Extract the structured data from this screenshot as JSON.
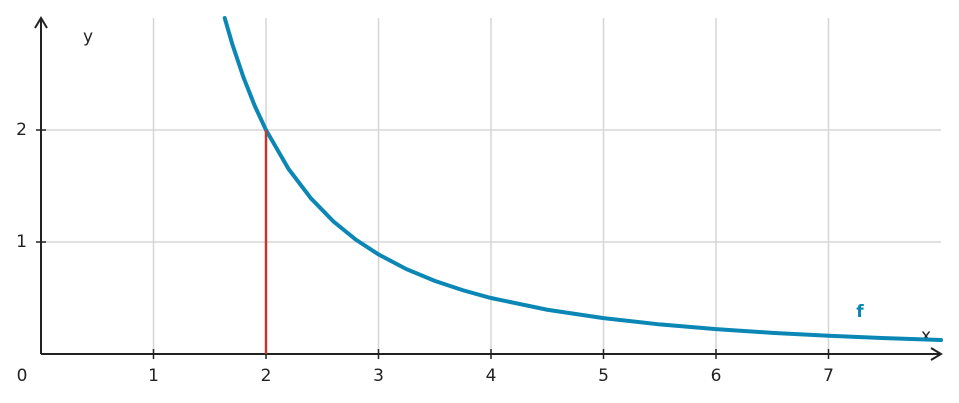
{
  "chart_data": {
    "type": "line",
    "x_label": "x",
    "y_label": "y",
    "origin_label": "0",
    "xlim": [
      0,
      8
    ],
    "ylim": [
      0,
      3
    ],
    "xticks": [
      1,
      2,
      3,
      4,
      5,
      6,
      7
    ],
    "yticks": [
      1,
      2
    ],
    "grid": true,
    "series": [
      {
        "name": "f",
        "color": "#0a87b5",
        "x": [
          1.633,
          1.7,
          1.8,
          1.9,
          2,
          2.2,
          2.4,
          2.6,
          2.8,
          3,
          3.25,
          3.5,
          3.75,
          4,
          4.5,
          5,
          5.5,
          6,
          6.5,
          7,
          7.5,
          8
        ],
        "values": [
          3.0,
          2.768,
          2.469,
          2.216,
          2,
          1.653,
          1.389,
          1.183,
          1.02,
          0.889,
          0.757,
          0.653,
          0.569,
          0.5,
          0.395,
          0.32,
          0.264,
          0.222,
          0.189,
          0.163,
          0.142,
          0.125
        ]
      }
    ],
    "marker_line": {
      "color": "#c0392b",
      "x": [
        2,
        2
      ],
      "values": [
        0,
        2
      ]
    }
  }
}
